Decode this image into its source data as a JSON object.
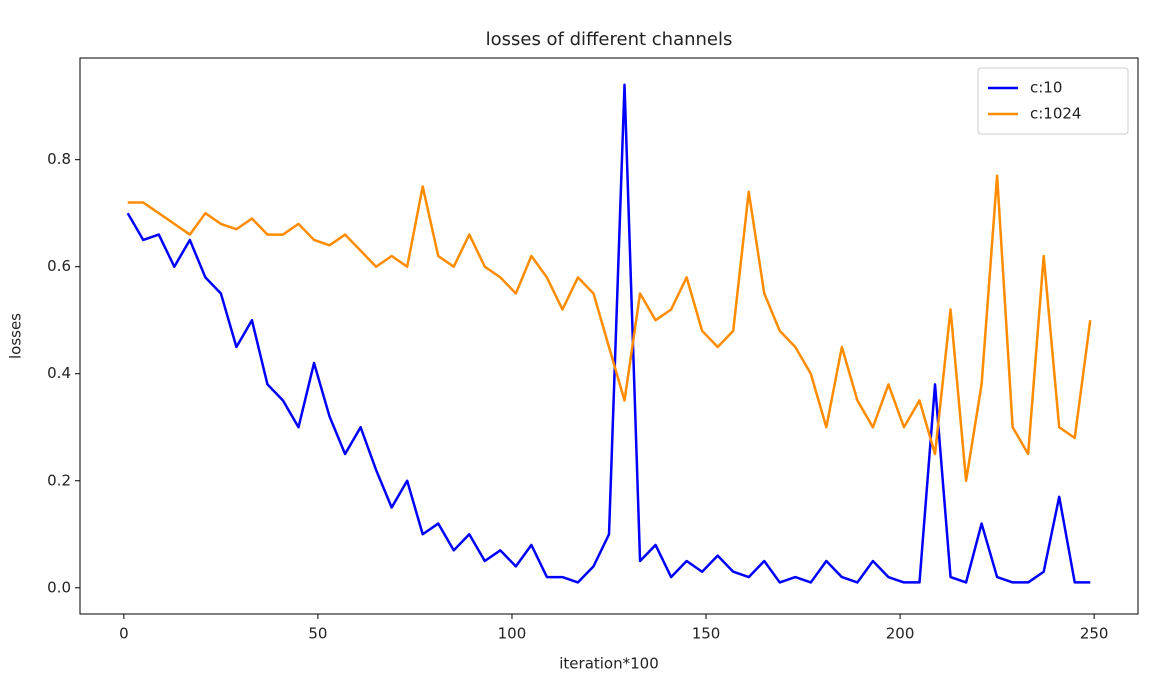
{
  "chart_data": {
    "type": "line",
    "title": "losses of different channels",
    "x_label": "iteration*100",
    "y_label": "losses",
    "x": [
      1,
      5,
      9,
      13,
      17,
      21,
      25,
      29,
      33,
      37,
      41,
      45,
      49,
      53,
      57,
      61,
      65,
      69,
      73,
      77,
      81,
      85,
      89,
      93,
      97,
      101,
      105,
      109,
      113,
      117,
      121,
      125,
      129,
      133,
      137,
      141,
      145,
      149,
      153,
      157,
      161,
      165,
      169,
      173,
      177,
      181,
      185,
      189,
      193,
      197,
      201,
      205,
      209,
      213,
      217,
      221,
      225,
      229,
      233,
      237,
      241,
      245,
      249
    ],
    "series": [
      {
        "name": "c:10",
        "color": "#0000ff",
        "values": [
          0.7,
          0.65,
          0.66,
          0.6,
          0.65,
          0.58,
          0.55,
          0.45,
          0.5,
          0.38,
          0.35,
          0.3,
          0.42,
          0.32,
          0.25,
          0.3,
          0.22,
          0.15,
          0.2,
          0.1,
          0.12,
          0.07,
          0.1,
          0.05,
          0.07,
          0.04,
          0.08,
          0.02,
          0.02,
          0.01,
          0.04,
          0.1,
          0.94,
          0.05,
          0.08,
          0.02,
          0.05,
          0.03,
          0.06,
          0.03,
          0.02,
          0.05,
          0.01,
          0.02,
          0.01,
          0.05,
          0.02,
          0.01,
          0.05,
          0.02,
          0.01,
          0.01,
          0.38,
          0.02,
          0.01,
          0.12,
          0.02,
          0.01,
          0.01,
          0.03,
          0.17,
          0.01,
          0.01
        ]
      },
      {
        "name": "c:1024",
        "color": "#ff8c00",
        "values": [
          0.72,
          0.72,
          0.7,
          0.68,
          0.66,
          0.7,
          0.68,
          0.67,
          0.69,
          0.66,
          0.66,
          0.68,
          0.65,
          0.64,
          0.66,
          0.63,
          0.6,
          0.62,
          0.6,
          0.75,
          0.62,
          0.6,
          0.66,
          0.6,
          0.58,
          0.55,
          0.62,
          0.58,
          0.52,
          0.58,
          0.55,
          0.45,
          0.35,
          0.55,
          0.5,
          0.52,
          0.58,
          0.48,
          0.45,
          0.48,
          0.74,
          0.55,
          0.48,
          0.45,
          0.4,
          0.3,
          0.45,
          0.35,
          0.3,
          0.38,
          0.3,
          0.35,
          0.25,
          0.52,
          0.2,
          0.38,
          0.77,
          0.3,
          0.25,
          0.62,
          0.3,
          0.28,
          0.5
        ]
      }
    ],
    "xlim": [
      -11.3,
      261.3
    ],
    "ylim": [
      -0.049,
      0.99
    ],
    "xticks": [
      0,
      50,
      100,
      150,
      200,
      250
    ],
    "yticks": [
      {
        "value": 0,
        "label": "0.0"
      },
      0.2,
      0.4,
      0.6,
      0.8
    ],
    "legend": "upper right"
  }
}
